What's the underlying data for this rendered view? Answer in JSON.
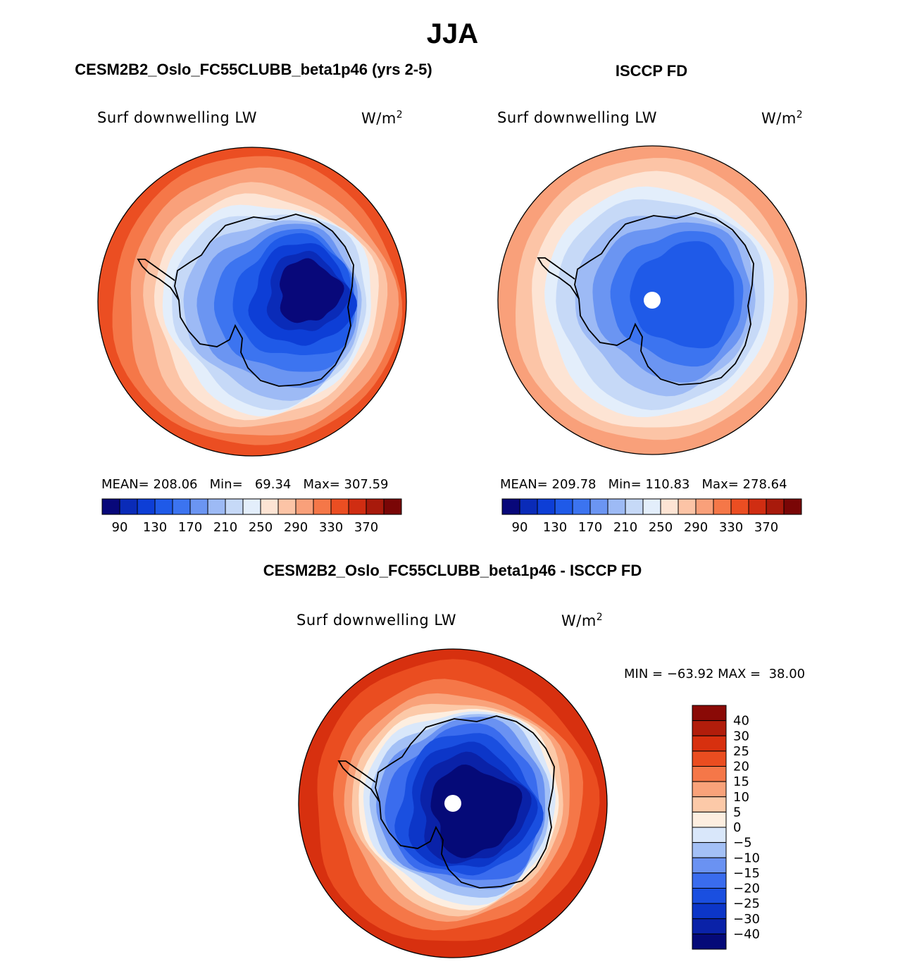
{
  "figure": {
    "season": "JJA",
    "left_title": "CESM2B2_Oslo_FC55CLUBB_beta1p46 (yrs 2-5)",
    "right_title": "ISCCP FD",
    "diff_title": "CESM2B2_Oslo_FC55CLUBB_beta1p46 - ISCCP FD"
  },
  "panels": {
    "model": {
      "variable": "Surf downwelling LW",
      "units_base": "W/m",
      "units_exp": "2",
      "stats": "MEAN= 208.06   Min=   69.34   Max= 307.59"
    },
    "obs": {
      "variable": "Surf downwelling LW",
      "units_base": "W/m",
      "units_exp": "2",
      "stats": "MEAN= 209.78   Min= 110.83   Max= 278.64"
    },
    "diff": {
      "variable": "Surf downwelling LW",
      "units_base": "W/m",
      "units_exp": "2",
      "stats": "MIN = −63.92 MAX =  38.00"
    }
  },
  "chart_data": [
    {
      "type": "heatmap",
      "projection": "south-polar stereographic",
      "title": "CESM2B2_Oslo_FC55CLUBB_beta1p46 (yrs 2-5)",
      "variable": "Surf downwelling LW",
      "units": "W/m2",
      "mean": 208.06,
      "min": 69.34,
      "max": 307.59,
      "levels": [
        90,
        110,
        130,
        150,
        170,
        190,
        210,
        230,
        250,
        270,
        290,
        310,
        330,
        350,
        370
      ],
      "level_tick_labels": [
        "90",
        "130",
        "170",
        "210",
        "250",
        "290",
        "330",
        "370"
      ],
      "colors": [
        "#08087a",
        "#0a2bb8",
        "#0d3ed6",
        "#1f5ae8",
        "#3c74f0",
        "#6b95f2",
        "#9dbaf5",
        "#c6d9f7",
        "#e3eefb",
        "#fde4d4",
        "#fcc4a6",
        "#f9a07a",
        "#f57748",
        "#eb4e22",
        "#d02d12",
        "#a81a0c",
        "#7a0606"
      ]
    },
    {
      "type": "heatmap",
      "projection": "south-polar stereographic",
      "title": "ISCCP FD",
      "variable": "Surf downwelling LW",
      "units": "W/m2",
      "mean": 209.78,
      "min": 110.83,
      "max": 278.64,
      "levels": [
        90,
        110,
        130,
        150,
        170,
        190,
        210,
        230,
        250,
        270,
        290,
        310,
        330,
        350,
        370
      ],
      "level_tick_labels": [
        "90",
        "130",
        "170",
        "210",
        "250",
        "290",
        "330",
        "370"
      ],
      "colors": [
        "#08087a",
        "#0a2bb8",
        "#0d3ed6",
        "#1f5ae8",
        "#3c74f0",
        "#6b95f2",
        "#9dbaf5",
        "#c6d9f7",
        "#e3eefb",
        "#fde4d4",
        "#fcc4a6",
        "#f9a07a",
        "#f57748",
        "#eb4e22",
        "#d02d12",
        "#a81a0c",
        "#7a0606"
      ]
    },
    {
      "type": "heatmap",
      "projection": "south-polar stereographic",
      "title": "CESM2B2_Oslo_FC55CLUBB_beta1p46 - ISCCP FD",
      "variable": "Surf downwelling LW",
      "units": "W/m2",
      "min": -63.92,
      "max": 38.0,
      "levels": [
        -40,
        -30,
        -25,
        -20,
        -15,
        -10,
        -5,
        0,
        5,
        10,
        15,
        20,
        25,
        30,
        40
      ],
      "level_tick_labels": [
        "−40",
        "−30",
        "−25",
        "−20",
        "−15",
        "−10",
        "−5",
        "0",
        "5",
        "10",
        "15",
        "20",
        "25",
        "30",
        "40"
      ],
      "colors": [
        "#050a78",
        "#0a22a8",
        "#0c36c8",
        "#1a4fe0",
        "#3a6cee",
        "#6a92f2",
        "#a3c0f6",
        "#d9e7fa",
        "#fdeee0",
        "#fcc9a8",
        "#f9a27a",
        "#f57748",
        "#ea4d20",
        "#d7300f",
        "#b11d0b",
        "#8a0a06"
      ]
    }
  ]
}
